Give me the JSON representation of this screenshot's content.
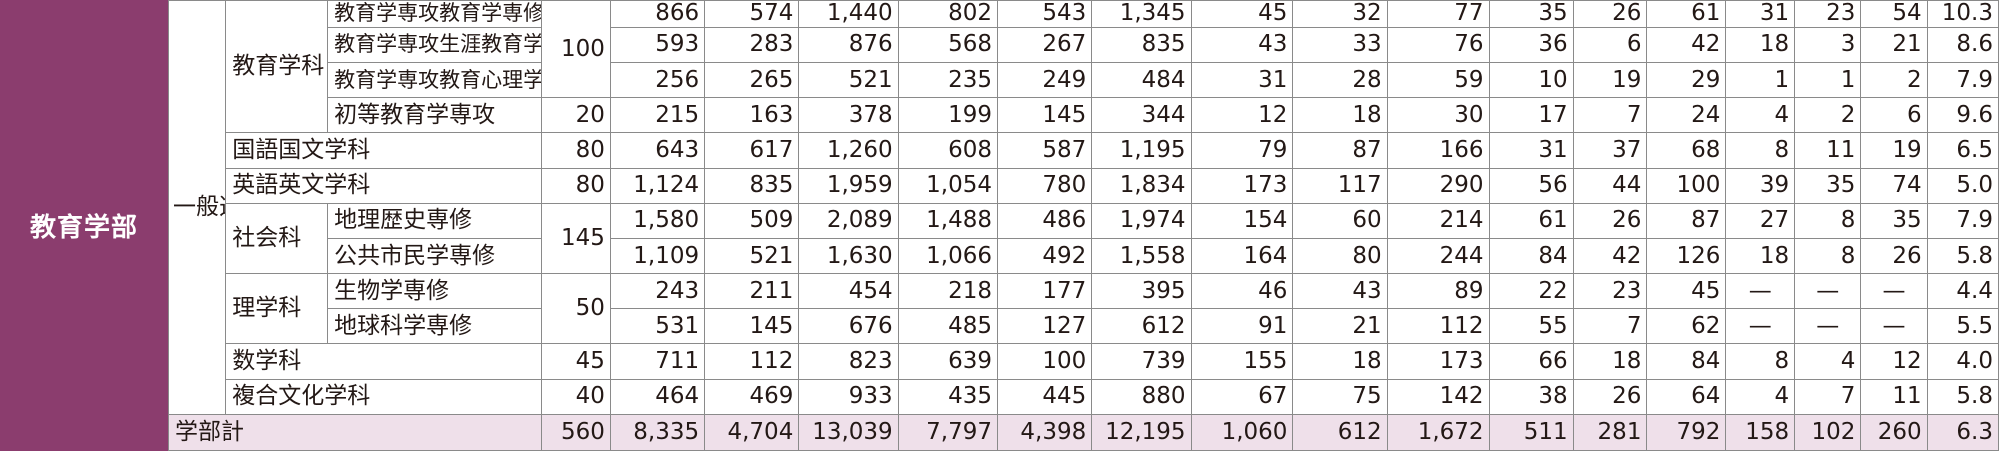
{
  "faculty": "教育学部",
  "method": "一般選抜",
  "rows": [
    {
      "dept": "教育学科",
      "sub": "教育学専攻教育学専修",
      "cap": "100",
      "v": [
        "866",
        "574",
        "1,440",
        "802",
        "543",
        "1,345",
        "45",
        "32",
        "77",
        "35",
        "26",
        "61",
        "31",
        "23",
        "54",
        "10.3"
      ]
    },
    {
      "sub": "教育学専攻生涯教育学専修",
      "v": [
        "593",
        "283",
        "876",
        "568",
        "267",
        "835",
        "43",
        "33",
        "76",
        "36",
        "6",
        "42",
        "18",
        "3",
        "21",
        "8.6"
      ]
    },
    {
      "sub": "教育学専攻教育心理学専修",
      "v": [
        "256",
        "265",
        "521",
        "235",
        "249",
        "484",
        "31",
        "28",
        "59",
        "10",
        "19",
        "29",
        "1",
        "1",
        "2",
        "7.9"
      ]
    },
    {
      "sub": "初等教育学専攻",
      "cap": "20",
      "v": [
        "215",
        "163",
        "378",
        "199",
        "145",
        "344",
        "12",
        "18",
        "30",
        "17",
        "7",
        "24",
        "4",
        "2",
        "6",
        "9.6"
      ]
    },
    {
      "dept": "国語国文学科",
      "cap": "80",
      "v": [
        "643",
        "617",
        "1,260",
        "608",
        "587",
        "1,195",
        "79",
        "87",
        "166",
        "31",
        "37",
        "68",
        "8",
        "11",
        "19",
        "6.5"
      ]
    },
    {
      "dept": "英語英文学科",
      "cap": "80",
      "v": [
        "1,124",
        "835",
        "1,959",
        "1,054",
        "780",
        "1,834",
        "173",
        "117",
        "290",
        "56",
        "44",
        "100",
        "39",
        "35",
        "74",
        "5.0"
      ]
    },
    {
      "dept": "社会科",
      "sub": "地理歴史専修",
      "cap": "145",
      "v": [
        "1,580",
        "509",
        "2,089",
        "1,488",
        "486",
        "1,974",
        "154",
        "60",
        "214",
        "61",
        "26",
        "87",
        "27",
        "8",
        "35",
        "7.9"
      ]
    },
    {
      "sub": "公共市民学専修",
      "v": [
        "1,109",
        "521",
        "1,630",
        "1,066",
        "492",
        "1,558",
        "164",
        "80",
        "244",
        "84",
        "42",
        "126",
        "18",
        "8",
        "26",
        "5.8"
      ]
    },
    {
      "dept": "理学科",
      "sub": "生物学専修",
      "cap": "50",
      "v": [
        "243",
        "211",
        "454",
        "218",
        "177",
        "395",
        "46",
        "43",
        "89",
        "22",
        "23",
        "45",
        "—",
        "—",
        "—",
        "4.4"
      ]
    },
    {
      "sub": "地球科学専修",
      "v": [
        "531",
        "145",
        "676",
        "485",
        "127",
        "612",
        "91",
        "21",
        "112",
        "55",
        "7",
        "62",
        "—",
        "—",
        "—",
        "5.5"
      ]
    },
    {
      "dept": "数学科",
      "cap": "45",
      "v": [
        "711",
        "112",
        "823",
        "639",
        "100",
        "739",
        "155",
        "18",
        "173",
        "66",
        "18",
        "84",
        "8",
        "4",
        "12",
        "4.0"
      ]
    },
    {
      "dept": "複合文化学科",
      "cap": "40",
      "v": [
        "464",
        "469",
        "933",
        "435",
        "445",
        "880",
        "67",
        "75",
        "142",
        "38",
        "26",
        "64",
        "4",
        "7",
        "11",
        "5.8"
      ]
    }
  ],
  "total": {
    "label": "学部計",
    "cap": "560",
    "v": [
      "8,335",
      "4,704",
      "13,039",
      "7,797",
      "4,398",
      "12,195",
      "1,060",
      "612",
      "1,672",
      "511",
      "281",
      "792",
      "158",
      "102",
      "260",
      "6.3"
    ]
  }
}
